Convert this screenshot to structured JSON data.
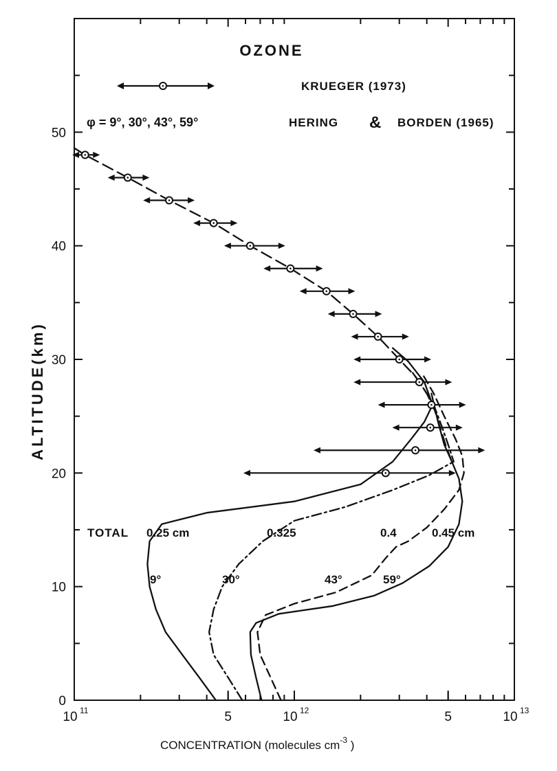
{
  "chart_data": {
    "type": "line",
    "title": "OZONE",
    "xlabel": "CONCENTRATION  (molecules cm",
    "xlabel_exp": "-3",
    "xlabel_end": " )",
    "ylabel": "ALTITUDE(km)",
    "x_scale": "log",
    "xlim": [
      100000000000.0,
      10000000000000.0
    ],
    "ylim": [
      0,
      60
    ],
    "x_ticks": [
      {
        "value": 100000000000.0,
        "base": "10",
        "exp": "11"
      },
      {
        "value": 500000000000.0,
        "base": "5",
        "exp": ""
      },
      {
        "value": 1000000000000.0,
        "base": "10",
        "exp": "12"
      },
      {
        "value": 5000000000000.0,
        "base": "5",
        "exp": ""
      },
      {
        "value": 10000000000000.0,
        "base": "10",
        "exp": "13"
      }
    ],
    "y_ticks": [
      {
        "value": 0,
        "label": "0"
      },
      {
        "value": 10,
        "label": "10"
      },
      {
        "value": 20,
        "label": "20"
      },
      {
        "value": 30,
        "label": "30"
      },
      {
        "value": 40,
        "label": "40"
      },
      {
        "value": 50,
        "label": "50"
      }
    ],
    "legend": {
      "krueger_label": "KRUEGER (1973)",
      "phi_label": "φ = 9°, 30°, 43°, 59°",
      "hering_label": "HERING",
      "amp": "&",
      "borden_label": "BORDEN (1965)"
    },
    "krueger_points": [
      {
        "alt": 48,
        "x": 112000000000.0,
        "xmin": 100000000000.0,
        "xmax": 128000000000.0
      },
      {
        "alt": 46,
        "x": 175000000000.0,
        "xmin": 145000000000.0,
        "xmax": 215000000000.0
      },
      {
        "alt": 44,
        "x": 270000000000.0,
        "xmin": 210000000000.0,
        "xmax": 345000000000.0
      },
      {
        "alt": 42,
        "x": 430000000000.0,
        "xmin": 355000000000.0,
        "xmax": 540000000000.0
      },
      {
        "alt": 40,
        "x": 630000000000.0,
        "xmin": 490000000000.0,
        "xmax": 890000000000.0
      },
      {
        "alt": 38,
        "x": 960000000000.0,
        "xmin": 740000000000.0,
        "xmax": 1320000000000.0
      },
      {
        "alt": 36,
        "x": 1400000000000.0,
        "xmin": 1080000000000.0,
        "xmax": 1850000000000.0
      },
      {
        "alt": 34,
        "x": 1850000000000.0,
        "xmin": 1450000000000.0,
        "xmax": 2450000000000.0
      },
      {
        "alt": 32,
        "x": 2400000000000.0,
        "xmin": 1850000000000.0,
        "xmax": 3250000000000.0
      },
      {
        "alt": 30,
        "x": 3000000000000.0,
        "xmin": 1900000000000.0,
        "xmax": 4100000000000.0
      },
      {
        "alt": 28,
        "x": 3700000000000.0,
        "xmin": 1900000000000.0,
        "xmax": 5100000000000.0
      },
      {
        "alt": 26,
        "x": 4200000000000.0,
        "xmin": 2450000000000.0,
        "xmax": 5900000000000.0
      },
      {
        "alt": 24,
        "x": 4150000000000.0,
        "xmin": 2850000000000.0,
        "xmax": 5700000000000.0
      },
      {
        "alt": 22,
        "x": 3550000000000.0,
        "xmin": 1250000000000.0,
        "xmax": 7200000000000.0
      },
      {
        "alt": 20,
        "x": 2600000000000.0,
        "xmin": 600000000000.0,
        "xmax": 5300000000000.0
      }
    ],
    "series": [
      {
        "name": "9°",
        "total": "0.25 cm",
        "style": "solid",
        "points": [
          [
            440000000000.0,
            0
          ],
          [
            370000000000.0,
            2
          ],
          [
            310000000000.0,
            4
          ],
          [
            260000000000.0,
            6
          ],
          [
            235000000000.0,
            8
          ],
          [
            220000000000.0,
            10
          ],
          [
            215000000000.0,
            12
          ],
          [
            220000000000.0,
            14
          ],
          [
            250000000000.0,
            15.5
          ],
          [
            400000000000.0,
            16.5
          ],
          [
            1000000000000.0,
            17.5
          ],
          [
            2000000000000.0,
            19
          ],
          [
            2800000000000.0,
            21
          ],
          [
            3400000000000.0,
            23
          ],
          [
            3900000000000.0,
            24.5
          ],
          [
            4250000000000.0,
            26
          ],
          [
            3900000000000.0,
            28
          ],
          [
            3300000000000.0,
            29.8
          ],
          [
            2800000000000.0,
            31
          ]
        ]
      },
      {
        "name": "30°",
        "total": "0.325",
        "style": "dashdot",
        "points": [
          [
            580000000000.0,
            0
          ],
          [
            500000000000.0,
            2
          ],
          [
            430000000000.0,
            4
          ],
          [
            410000000000.0,
            6
          ],
          [
            430000000000.0,
            8
          ],
          [
            470000000000.0,
            10
          ],
          [
            560000000000.0,
            12
          ],
          [
            720000000000.0,
            14
          ],
          [
            1000000000000.0,
            15.8
          ],
          [
            1700000000000.0,
            17
          ],
          [
            2800000000000.0,
            18.5
          ],
          [
            4100000000000.0,
            19.8
          ],
          [
            5300000000000.0,
            21
          ],
          [
            5000000000000.0,
            22.5
          ],
          [
            4700000000000.0,
            24
          ],
          [
            4300000000000.0,
            26
          ],
          [
            3850000000000.0,
            27.5
          ],
          [
            3400000000000.0,
            29
          ]
        ]
      },
      {
        "name": "43°",
        "total": "0.4",
        "style": "dashed",
        "points": [
          [
            870000000000.0,
            0
          ],
          [
            780000000000.0,
            2
          ],
          [
            700000000000.0,
            4
          ],
          [
            680000000000.0,
            6
          ],
          [
            740000000000.0,
            7.5
          ],
          [
            1000000000000.0,
            8.5
          ],
          [
            1550000000000.0,
            9.5
          ],
          [
            2250000000000.0,
            11
          ],
          [
            2600000000000.0,
            12.5
          ],
          [
            2900000000000.0,
            13.5
          ],
          [
            3300000000000.0,
            14
          ],
          [
            4000000000000.0,
            15.2
          ],
          [
            4800000000000.0,
            16.8
          ],
          [
            5600000000000.0,
            18.5
          ],
          [
            5900000000000.0,
            20
          ],
          [
            5800000000000.0,
            21.5
          ],
          [
            5400000000000.0,
            23
          ],
          [
            4800000000000.0,
            25
          ],
          [
            4300000000000.0,
            27
          ],
          [
            3800000000000.0,
            28.8
          ]
        ]
      },
      {
        "name": "59°",
        "total": "0.45 cm",
        "style": "solid",
        "points": [
          [
            710000000000.0,
            0
          ],
          [
            670000000000.0,
            2
          ],
          [
            635000000000.0,
            4
          ],
          [
            630000000000.0,
            6
          ],
          [
            670000000000.0,
            6.8
          ],
          [
            850000000000.0,
            7.6
          ],
          [
            1500000000000.0,
            8.3
          ],
          [
            2300000000000.0,
            9.2
          ],
          [
            3100000000000.0,
            10.3
          ],
          [
            4100000000000.0,
            11.8
          ],
          [
            5000000000000.0,
            13.5
          ],
          [
            5600000000000.0,
            15.5
          ],
          [
            5800000000000.0,
            17.5
          ],
          [
            5600000000000.0,
            19.5
          ],
          [
            5200000000000.0,
            21
          ],
          [
            4800000000000.0,
            22.5
          ],
          [
            4500000000000.0,
            24.5
          ],
          [
            4200000000000.0,
            27
          ]
        ]
      },
      {
        "name": "Hering & Borden",
        "total": "",
        "style": "longdash",
        "points": [
          [
            100000000000.0,
            48.6
          ],
          [
            112000000000.0,
            48
          ],
          [
            175000000000.0,
            46
          ],
          [
            270000000000.0,
            44
          ],
          [
            430000000000.0,
            42
          ],
          [
            630000000000.0,
            40
          ],
          [
            960000000000.0,
            38
          ],
          [
            1400000000000.0,
            36
          ],
          [
            1850000000000.0,
            34
          ],
          [
            2400000000000.0,
            32
          ],
          [
            3000000000000.0,
            30
          ],
          [
            3550000000000.0,
            28.5
          ],
          [
            4000000000000.0,
            27
          ],
          [
            4350000000000.0,
            25.5
          ],
          [
            4600000000000.0,
            24
          ],
          [
            4900000000000.0,
            22.3
          ],
          [
            5200000000000.0,
            21
          ]
        ]
      }
    ],
    "annotations": {
      "total_label": "TOTAL",
      "total_values": [
        "0.25 cm",
        "0.325",
        "0.4",
        "0.45 cm"
      ],
      "angle_labels": [
        "9°",
        "30°",
        "43°",
        "59°"
      ]
    }
  }
}
